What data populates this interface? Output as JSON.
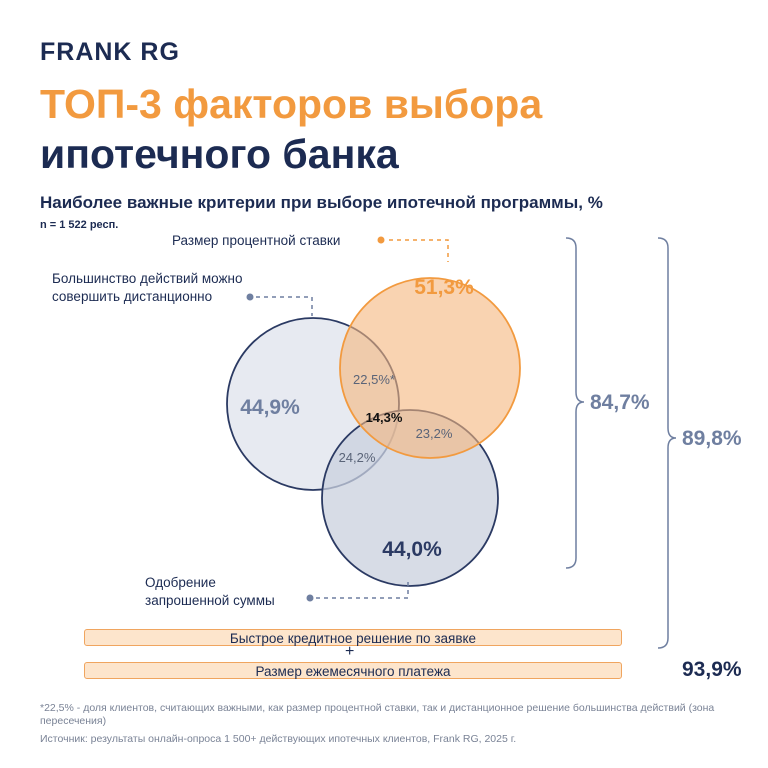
{
  "brand": {
    "logo": "FRANK RG"
  },
  "title": {
    "line1": "ТОП-3 факторов выбора",
    "line2": "ипотечного банка"
  },
  "subtitle": "Наиболее важные критерии при выборе ипотечной программы, %",
  "sample": "n = 1 522 респ.",
  "colors": {
    "orange": "#f29a3f",
    "navy": "#1c2b52",
    "slate": "#6f7fa0"
  },
  "venn": {
    "rate": {
      "label": "Размер процентной ставки",
      "value": "51,3%"
    },
    "remote": {
      "label_line1": "Большинство действий можно",
      "label_line2": "совершить дистанционно",
      "value": "44,9%"
    },
    "approval": {
      "label_line1": "Одобрение",
      "label_line2": "запрошенной суммы",
      "value": "44,0%"
    },
    "intersections": {
      "rate_remote": "22,5%*",
      "all_three": "14,3%",
      "rate_approval": "23,2%",
      "remote_approval": "24,2%"
    }
  },
  "totals": {
    "top3": "84,7%",
    "top4": "89,8%",
    "top5": "93,9%"
  },
  "bars": {
    "fast_decision": "Быстрое кредитное решение по заявке",
    "plus": "+",
    "monthly_payment": "Размер ежемесячного платежа"
  },
  "footnote": {
    "note": "*22,5% - доля клиентов, считающих важными, как размер процентной ставки, так и дистанционное решение большинства действий (зона пересечения)",
    "source": "Источник: результаты онлайн-опроса 1 500+ действующих ипотечных клиентов, Frank RG, 2025 г."
  }
}
